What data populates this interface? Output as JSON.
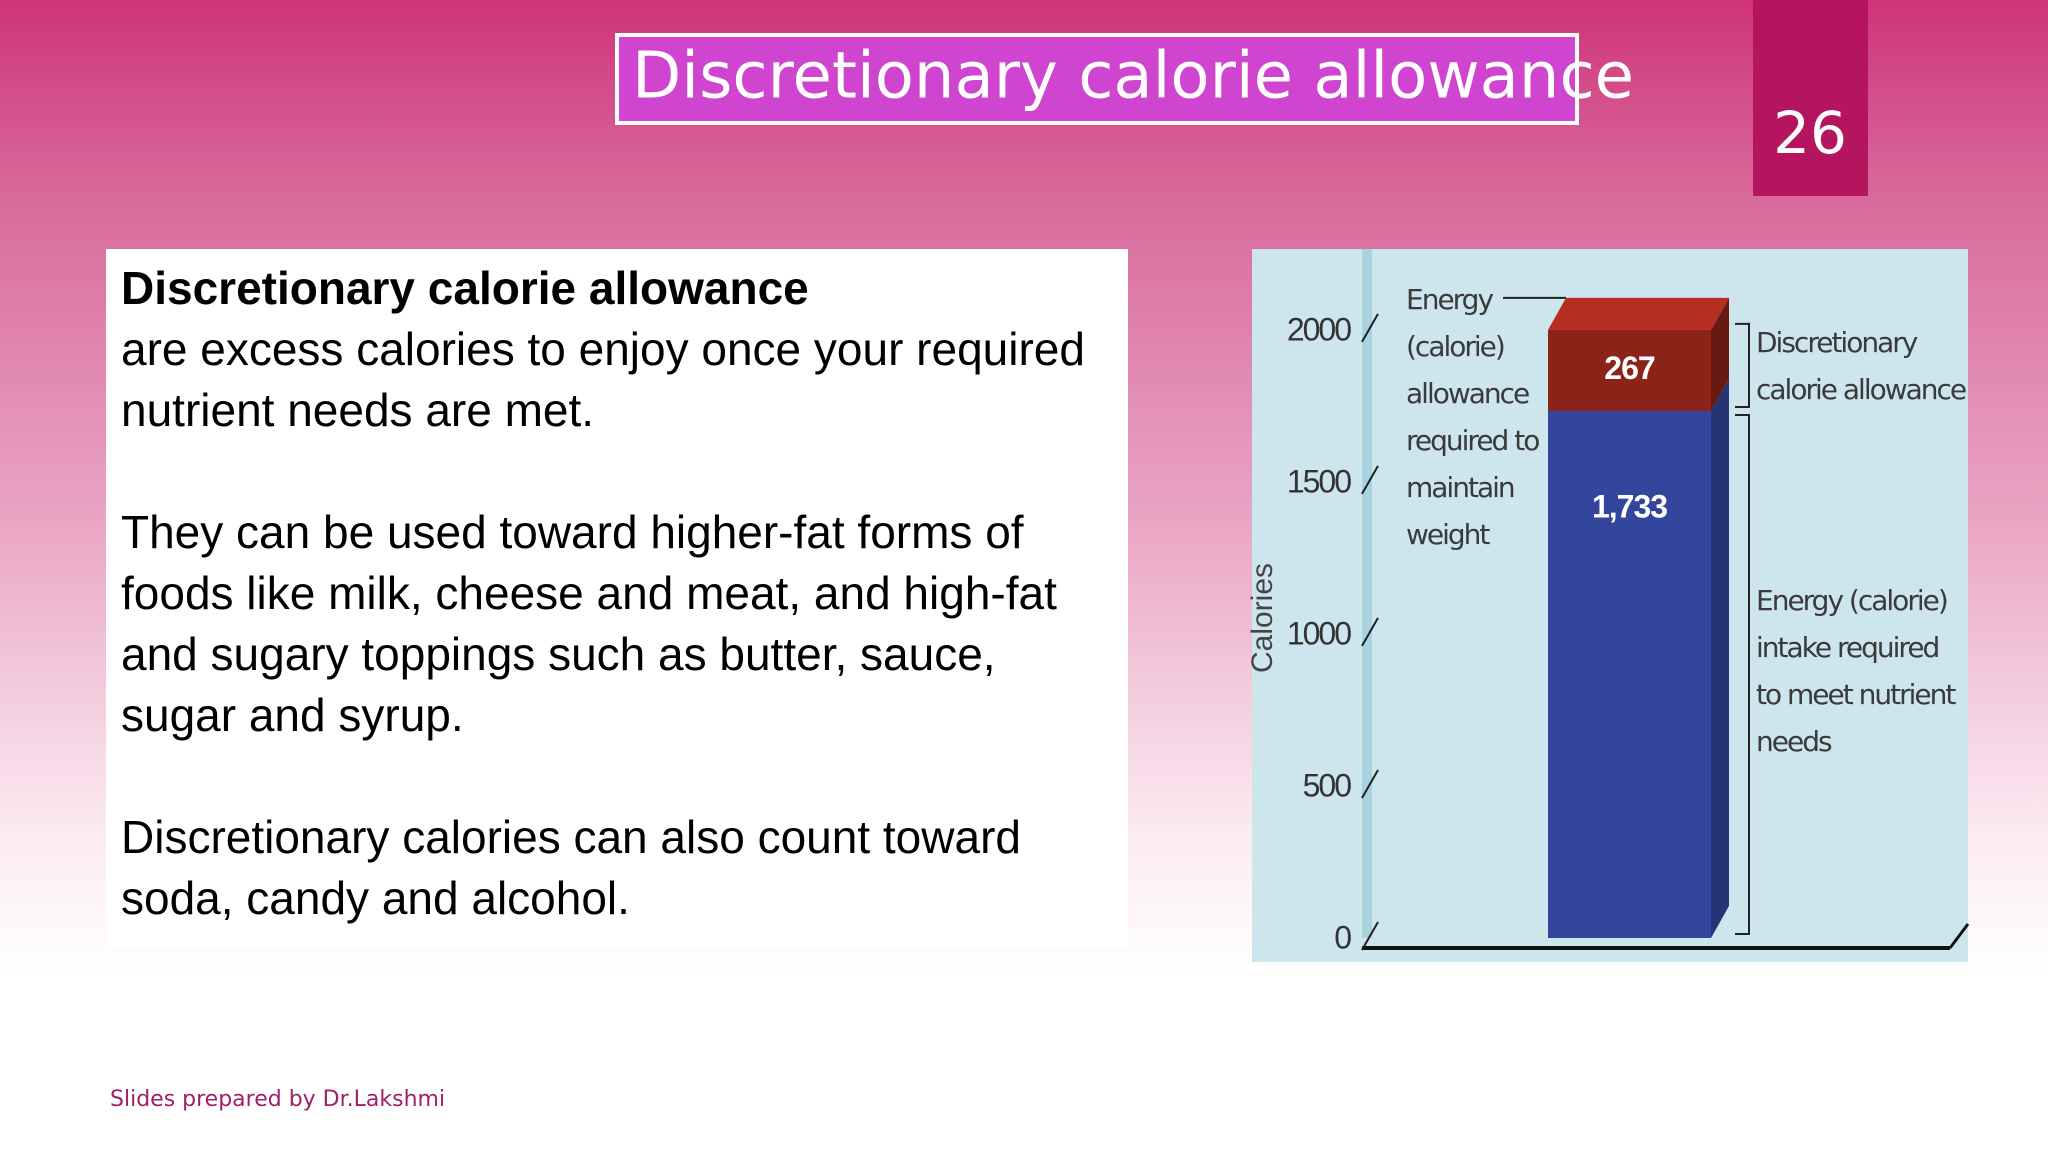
{
  "header": {
    "title": "Discretionary calorie allowance",
    "slide_number": "26"
  },
  "text_box": {
    "paragraphs": [
      {
        "term": "Discretionary calorie allowance",
        "text": "are excess calories to enjoy once your required nutrient needs are met."
      },
      {
        "text": "They can be used toward higher-fat forms of foods like milk, cheese and meat, and high-fat and sugary toppings such as butter, sauce, sugar and syrup."
      },
      {
        "text": "Discretionary calories can also count toward soda, candy and alcohol."
      }
    ]
  },
  "chart_data": {
    "type": "stacked_bar",
    "y_label": "Calories",
    "annotation": "Energy (calorie) allowance required to maintain weight",
    "categories": [
      null
    ],
    "series": [
      {
        "name": "Energy (calorie) intake required to meet nutrient needs",
        "color": "#33459c",
        "values": [
          1733
        ],
        "value_labels": [
          "1,733"
        ]
      },
      {
        "name": "Discretionary calorie allowance",
        "color": "#8b2318",
        "values": [
          267
        ]
      }
    ],
    "ylim": [
      0,
      2200
    ],
    "yticks": [
      0,
      500,
      1000,
      1500,
      2000
    ]
  },
  "footer": {
    "credit": "Slides prepared by Dr.Lakshmi"
  }
}
